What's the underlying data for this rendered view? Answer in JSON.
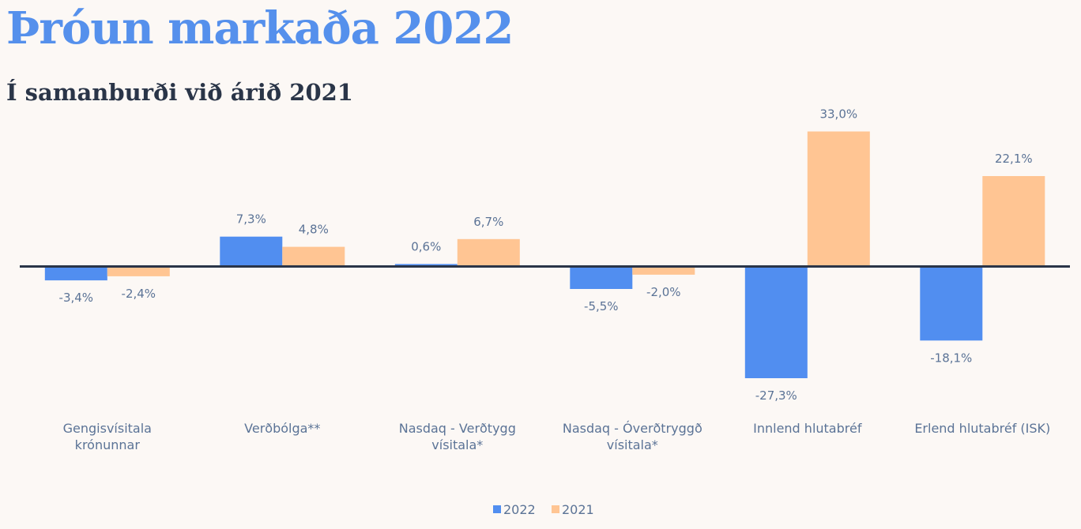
{
  "chart_data": {
    "type": "bar",
    "title": "Þróun markaða 2022",
    "subtitle": "Í samanburði við árið 2021",
    "xlabel": "",
    "ylabel": "",
    "categories": [
      [
        "Gengisvísitala",
        "krónunnar"
      ],
      [
        "Verðbólga**"
      ],
      [
        "Nasdaq - Verðtygg",
        "vísitala*"
      ],
      [
        "Nasdaq - Óverðtryggð",
        "vísitala*"
      ],
      [
        "Innlend hlutabréf"
      ],
      [
        "Erlend hlutabréf (ISK)"
      ]
    ],
    "series": [
      {
        "name": "2022",
        "color": "#518ef0",
        "values": [
          -3.4,
          7.3,
          0.6,
          -5.5,
          -27.3,
          -18.1
        ],
        "labels": [
          "-3,4%",
          "7,3%",
          "0,6%",
          "-5,5%",
          "-27,3%",
          "-18,1%"
        ]
      },
      {
        "name": "2021",
        "color": "#ffc593",
        "values": [
          -2.4,
          4.8,
          6.7,
          -2.0,
          33.0,
          22.1
        ],
        "labels": [
          "-2,4%",
          "4,8%",
          "6,7%",
          "-2,0%",
          "33,0%",
          "22,1%"
        ]
      }
    ],
    "ylim": [
      -33,
      33
    ],
    "grid": false,
    "legend_position": "bottom",
    "axis_color": "#2a3548"
  }
}
